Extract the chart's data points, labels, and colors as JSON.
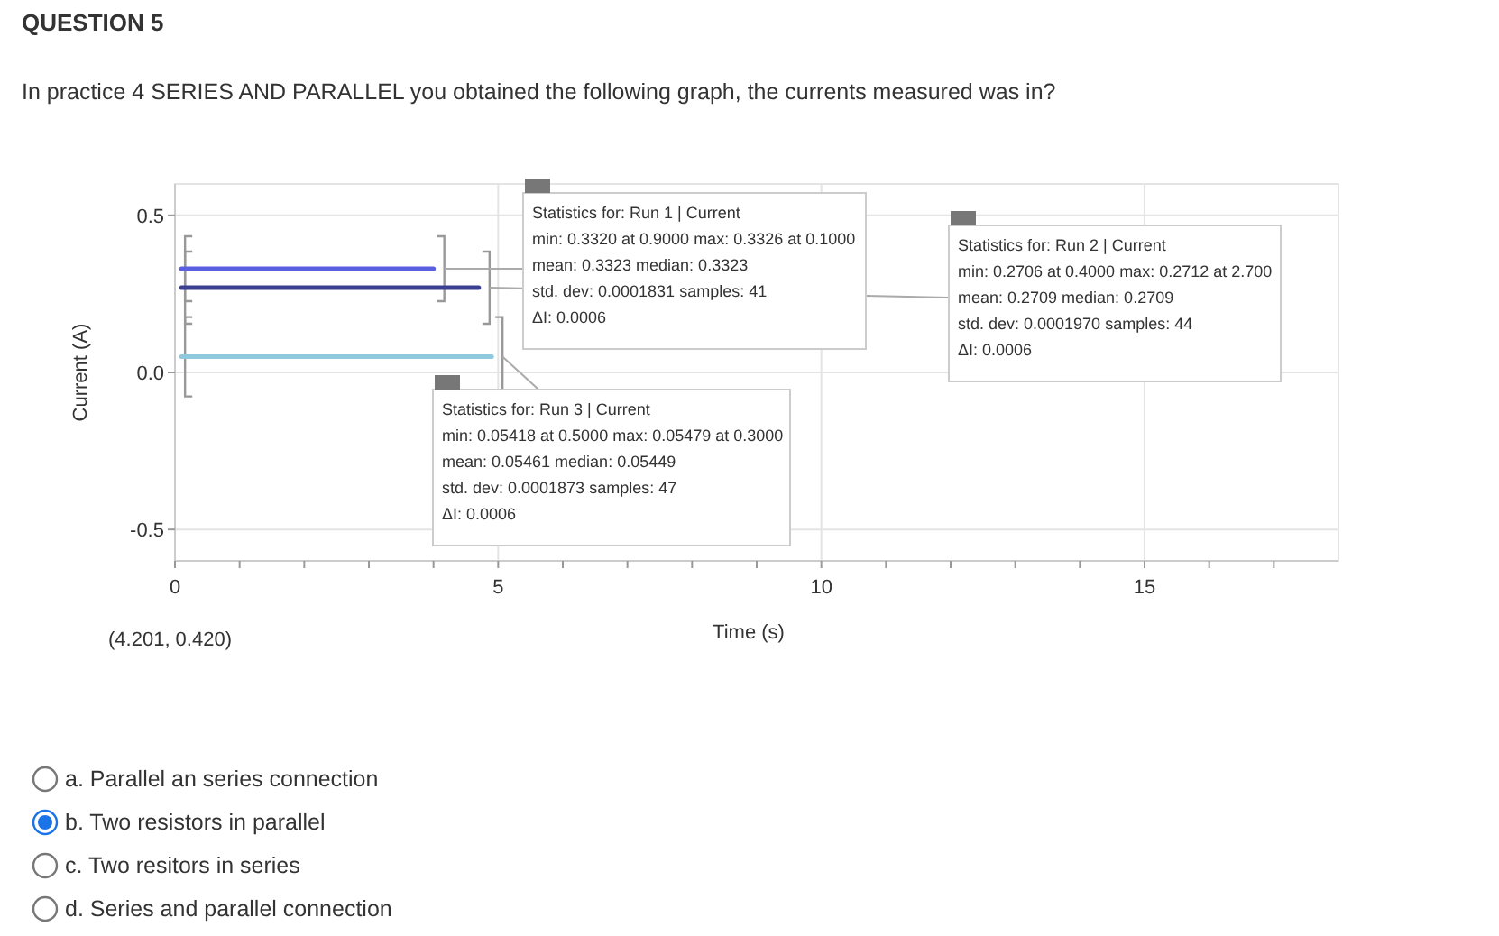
{
  "chart_data": {
    "type": "line",
    "title": "QUESTION 5",
    "subtitle": "In practice 4 SERIES AND PARALLEL you obtained the following graph, the currents measured was in?",
    "xlabel": "Time (s)",
    "ylabel": "Current (A)",
    "series": [
      {
        "color": "#5a5ee0",
        "x": [
          0.1,
          4.0
        ],
        "values": [
          0.33,
          0.33
        ]
      },
      {
        "color": "#3a3f8f",
        "x": [
          0.1,
          4.7
        ],
        "values": [
          0.27,
          0.27
        ]
      },
      {
        "color": "#8ec9dd",
        "x": [
          0.1,
          4.9
        ],
        "values": [
          0.05,
          0.05
        ]
      }
    ],
    "xlim": [
      0,
      18
    ],
    "xticks": [
      0,
      {
        "value": 1,
        "label": null
      },
      {
        "value": 2,
        "label": null
      },
      {
        "value": 3,
        "label": null
      },
      {
        "value": 4,
        "label": null
      },
      5,
      {
        "value": 6,
        "label": null
      },
      {
        "value": 7,
        "label": null
      },
      {
        "value": 8,
        "label": null
      },
      {
        "value": 9,
        "label": null
      },
      10,
      {
        "value": 11,
        "label": null
      },
      {
        "value": 12,
        "label": null
      },
      {
        "value": 13,
        "label": null
      },
      {
        "value": 14,
        "label": null
      },
      15,
      {
        "value": 16,
        "label": null
      },
      {
        "value": 17,
        "label": null
      }
    ],
    "ylim": [
      -0.6,
      0.6
    ],
    "yticks": [
      {
        "value": 0.5,
        "label": "0.5"
      },
      {
        "value": 0,
        "label": "0.0"
      },
      -0.5
    ],
    "grid": true,
    "annotations": [
      "Statistics for: Run 1 | Current\nmin: 0.3320 at 0.9000 max: 0.3326 at 0.1000\nmean: 0.3323 median: 0.3323\nstd. dev: 0.0001831 samples: 41\nΔI: 0.0006",
      "Statistics for: Run 2 | Current\nmin: 0.2706 at 0.4000 max: 0.2712 at 2.700\nmean: 0.2709 median: 0.2709\nstd. dev: 0.0001970 samples: 44\nΔI: 0.0006",
      "Statistics for: Run 3 | Current\nmin: 0.05418 at 0.5000 max: 0.05479 at 0.3000\nmean: 0.05461 median: 0.05449\nstd. dev: 0.0001873 samples: 47\nΔI: 0.0006",
      "(4.201, 0.420)",
      "a. Parallel an series connection",
      "b. Two resistors in parallel",
      "c. Two resitors in series",
      "d. Series and parallel connection"
    ]
  }
}
